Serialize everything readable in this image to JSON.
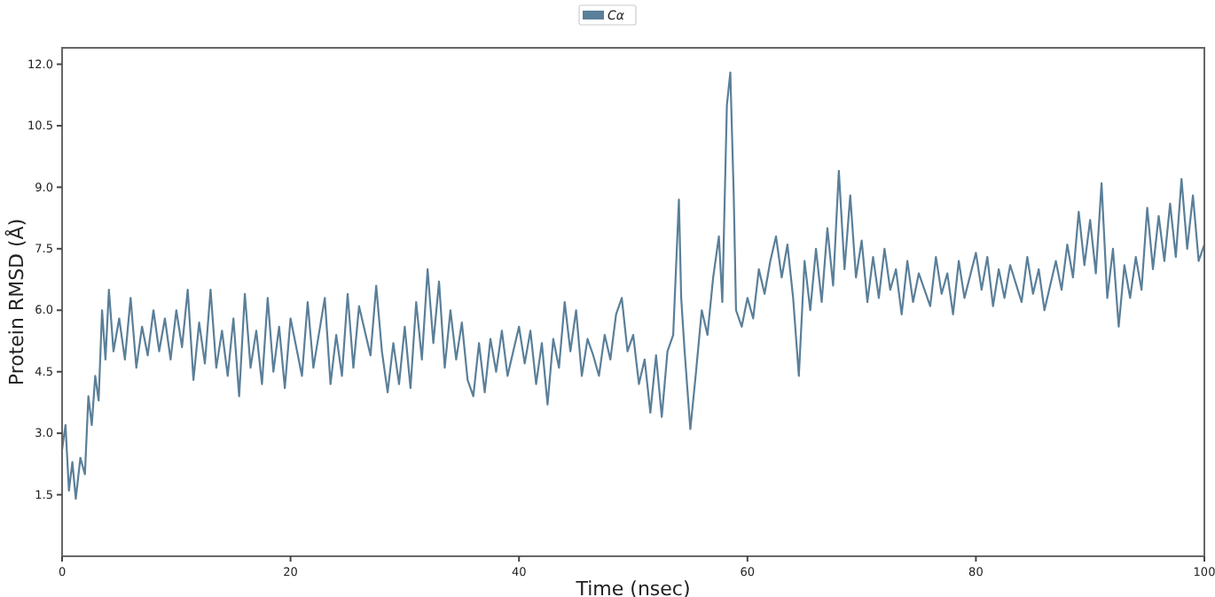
{
  "chart_data": {
    "type": "line",
    "xlabel": "Time (nsec)",
    "ylabel": "Protein RMSD (Å)",
    "xlim": [
      0,
      100
    ],
    "xticks": [
      0,
      20,
      40,
      60,
      80,
      100
    ],
    "ylim": [
      0,
      12.4
    ],
    "yticks": [
      1.5,
      {
        "value": 3,
        "label": "3.0"
      },
      4.5,
      {
        "value": 6,
        "label": "6.0"
      },
      7.5,
      {
        "value": 9,
        "label": "9.0"
      },
      10.5,
      {
        "value": 12,
        "label": "12.0"
      }
    ],
    "grid": false,
    "legend": "top",
    "marker": "none",
    "line_style": "solid",
    "series": [
      {
        "name": "Cα",
        "color": "#5a7f99",
        "x": [
          0,
          0.3,
          0.6,
          0.9,
          1.2,
          1.6,
          2,
          2.3,
          2.6,
          2.9,
          3.2,
          3.5,
          3.8,
          4.1,
          4.5,
          5,
          5.5,
          6,
          6.5,
          7,
          7.5,
          8,
          8.5,
          9,
          9.5,
          10,
          10.5,
          11,
          11.5,
          12,
          12.5,
          13,
          13.5,
          14,
          14.5,
          15,
          15.5,
          16,
          16.5,
          17,
          17.5,
          18,
          18.5,
          19,
          19.5,
          20,
          21,
          21.5,
          22,
          23,
          23.5,
          24,
          24.5,
          25,
          25.5,
          26,
          27,
          27.5,
          28,
          28.5,
          29,
          29.5,
          30,
          30.5,
          31,
          31.5,
          32,
          32.5,
          33,
          33.5,
          34,
          34.5,
          35,
          35.5,
          36,
          36.5,
          37,
          37.5,
          38,
          38.5,
          39,
          40,
          40.5,
          41,
          41.5,
          42,
          42.5,
          43,
          43.5,
          44,
          44.5,
          45,
          45.5,
          46,
          46.5,
          47,
          47.5,
          48,
          48.5,
          49,
          49.5,
          50,
          50.5,
          51,
          51.5,
          52,
          52.5,
          53,
          53.5,
          54,
          54.2,
          54.5,
          55,
          55.5,
          56,
          56.5,
          57,
          57.5,
          57.8,
          58.2,
          58.5,
          58.8,
          59,
          59.5,
          60,
          60.5,
          61,
          61.5,
          62,
          62.5,
          63,
          63.5,
          64,
          64.5,
          65,
          65.5,
          66,
          66.5,
          67,
          67.5,
          68,
          68.5,
          69,
          69.5,
          70,
          70.5,
          71,
          71.5,
          72,
          72.5,
          73,
          73.5,
          74,
          74.5,
          75,
          76,
          76.5,
          77,
          77.5,
          78,
          78.5,
          79,
          80,
          80.5,
          81,
          81.5,
          82,
          82.5,
          83,
          84,
          84.5,
          85,
          85.5,
          86,
          87,
          87.5,
          88,
          88.5,
          89,
          89.5,
          90,
          90.5,
          91,
          91.5,
          92,
          92.5,
          93,
          93.5,
          94,
          94.5,
          95,
          95.5,
          96,
          96.5,
          97,
          97.5,
          98,
          98.5,
          99,
          99.5,
          100
        ],
        "values": [
          2.6,
          3.2,
          1.6,
          2.3,
          1.4,
          2.4,
          2,
          3.9,
          3.2,
          4.4,
          3.8,
          6,
          4.8,
          6.5,
          5,
          5.8,
          4.8,
          6.3,
          4.6,
          5.6,
          4.9,
          6,
          5,
          5.8,
          4.8,
          6,
          5.1,
          6.5,
          4.3,
          5.7,
          4.7,
          6.5,
          4.6,
          5.5,
          4.4,
          5.8,
          3.9,
          6.4,
          4.6,
          5.5,
          4.2,
          6.3,
          4.5,
          5.6,
          4.1,
          5.8,
          4.4,
          6.2,
          4.6,
          6.3,
          4.2,
          5.4,
          4.4,
          6.4,
          4.6,
          6.1,
          4.9,
          6.6,
          5,
          4,
          5.2,
          4.2,
          5.6,
          4.1,
          6.2,
          4.8,
          7,
          5.2,
          6.7,
          4.6,
          6,
          4.8,
          5.7,
          4.3,
          3.9,
          5.2,
          4,
          5.3,
          4.5,
          5.5,
          4.4,
          5.6,
          4.7,
          5.5,
          4.2,
          5.2,
          3.7,
          5.3,
          4.6,
          6.2,
          5,
          6,
          4.4,
          5.3,
          4.9,
          4.4,
          5.4,
          4.8,
          5.9,
          6.3,
          5,
          5.4,
          4.2,
          4.8,
          3.5,
          4.9,
          3.4,
          5,
          5.4,
          8.7,
          6.3,
          5,
          3.1,
          4.5,
          6,
          5.4,
          6.8,
          7.8,
          6.2,
          11,
          11.8,
          8.8,
          6,
          5.6,
          6.3,
          5.8,
          7,
          6.4,
          7.2,
          7.8,
          6.8,
          7.6,
          6.3,
          4.4,
          7.2,
          6,
          7.5,
          6.2,
          8,
          6.6,
          9.4,
          7,
          8.8,
          6.8,
          7.7,
          6.2,
          7.3,
          6.3,
          7.5,
          6.5,
          7,
          5.9,
          7.2,
          6.2,
          6.9,
          6.1,
          7.3,
          6.4,
          6.9,
          5.9,
          7.2,
          6.3,
          7.4,
          6.5,
          7.3,
          6.1,
          7,
          6.3,
          7.1,
          6.2,
          7.3,
          6.4,
          7,
          6,
          7.2,
          6.5,
          7.6,
          6.8,
          8.4,
          7.1,
          8.2,
          6.9,
          9.1,
          6.3,
          7.5,
          5.6,
          7.1,
          6.3,
          7.3,
          6.5,
          8.5,
          7,
          8.3,
          7.2,
          8.6,
          7.3,
          9.2,
          7.5,
          8.8,
          7.2,
          7.6
        ]
      }
    ]
  }
}
